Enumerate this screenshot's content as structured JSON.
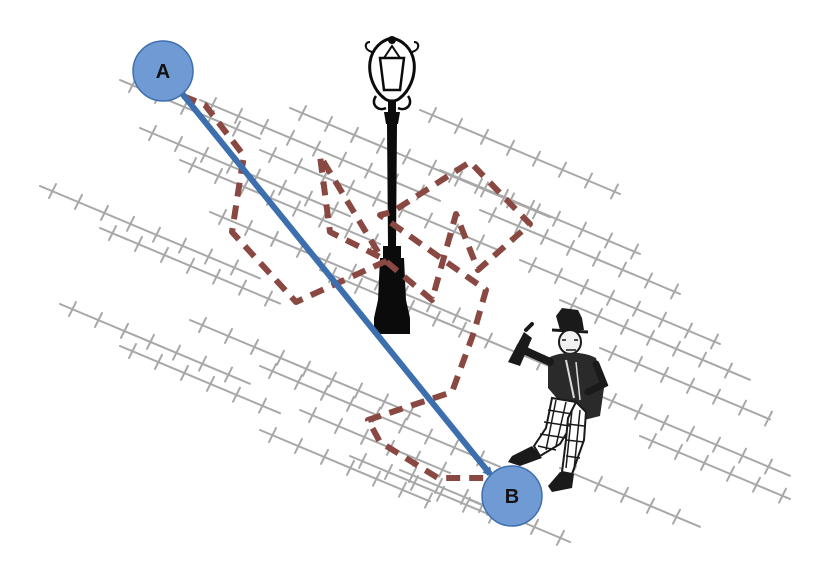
{
  "diagram": {
    "start_node": {
      "label": "A"
    },
    "end_node": {
      "label": "B"
    },
    "colors": {
      "node_fill": "#6f9ad4",
      "node_stroke": "#3f6fae",
      "direct_path": "#3d6faf",
      "random_walk": "#8a4842",
      "pavement": "#a8a8a8",
      "lamp": "#0b0b0b",
      "figure_ink": "#1a1a1a",
      "background": "#ffffff"
    },
    "icons": {
      "lamp": "street-lamp-icon",
      "figure": "drunk-man-with-bottle-icon"
    }
  }
}
